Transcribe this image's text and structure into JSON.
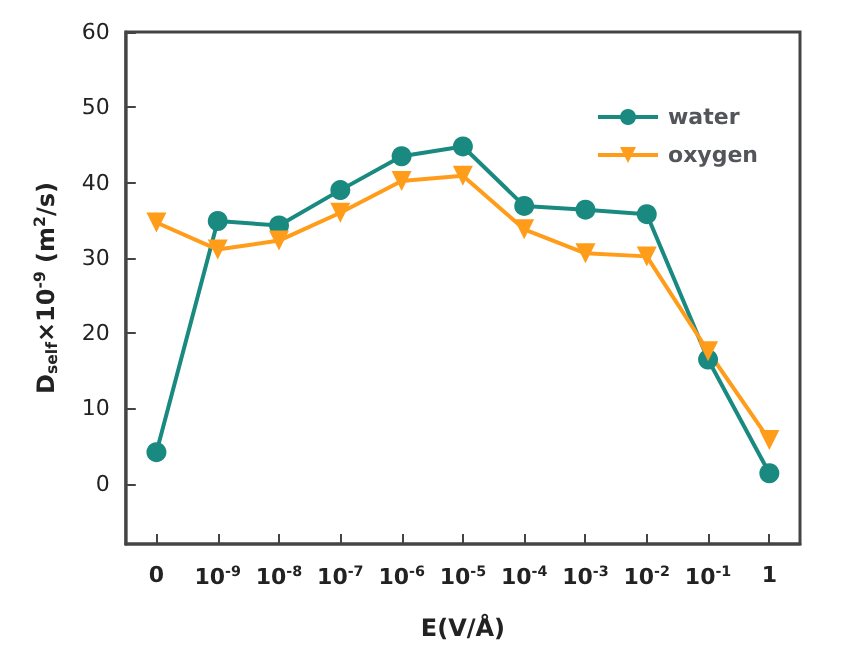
{
  "chart_data": {
    "type": "line",
    "xlabel": "E(V/Å)",
    "ylabel": "D$_{self}$×10$^{-9}$ (m$^{2}$/s)",
    "categories": [
      "0",
      "10$^{-9}$",
      "10$^{-8}$",
      "10$^{-7}$",
      "10$^{-6}$",
      "10$^{-5}$",
      "10$^{-4}$",
      "10$^{-3}$",
      "10$^{-2}$",
      "10$^{-1}$",
      "1"
    ],
    "series": [
      {
        "name": "water",
        "color": "#1a8a80",
        "marker": "circle",
        "values": [
          4.2,
          34.9,
          34.3,
          39,
          43.5,
          44.8,
          36.9,
          36.4,
          35.8,
          16.5,
          1.4
        ]
      },
      {
        "name": "oxygen",
        "color": "#ff9d1a",
        "marker": "triangle",
        "values": [
          34.7,
          31.1,
          32.3,
          36,
          40.2,
          40.9,
          33.8,
          30.6,
          30.2,
          17.6,
          5.8
        ]
      }
    ],
    "ylim": [
      -8,
      60
    ],
    "yticks": [
      0,
      10,
      20,
      30,
      40,
      50,
      60
    ],
    "legend": "top right",
    "line_style": "solid"
  }
}
